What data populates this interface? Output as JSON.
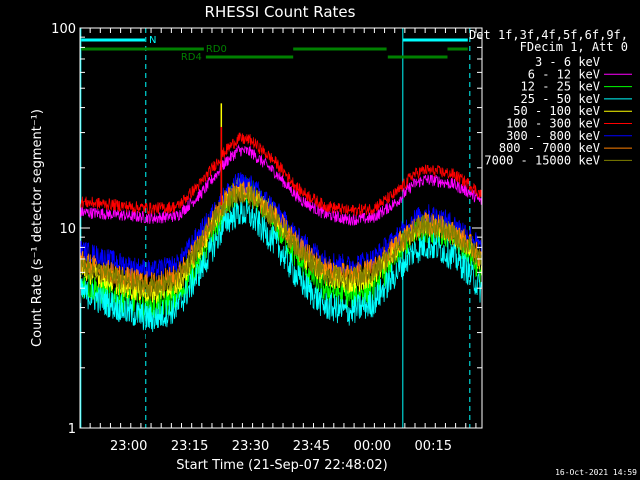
{
  "chart_data": {
    "type": "line",
    "title": "RHESSI Count Rates",
    "xlabel": "Start Time (21-Sep-07 22:48:02)",
    "ylabel": "Count Rate (s⁻¹ detector segment⁻¹)",
    "y_scale": "log",
    "ylim": [
      1,
      100
    ],
    "y_ticks": [
      "1",
      "10",
      "100"
    ],
    "x_ticks": [
      "23:00",
      "23:15",
      "23:30",
      "23:45",
      "00:00",
      "00:15"
    ],
    "x_tick_minutes": [
      12,
      27,
      42,
      57,
      72,
      87
    ],
    "xlim_minutes": [
      0,
      99
    ],
    "footer_date": "16-Oct-2021 14:59",
    "legend_header": [
      "Det 1f,3f,4f,5f,6f,9f,",
      "FDecim 1, Att 0"
    ],
    "legend_position": "right",
    "series": [
      {
        "name": "3 - 6 keV",
        "color": "#000000",
        "x": [
          0,
          6,
          12,
          18,
          24,
          30,
          36,
          39,
          42,
          48,
          54,
          60,
          66,
          72,
          78,
          82,
          85,
          88,
          92,
          96,
          99
        ],
        "y": [
          4.6,
          4.0,
          3.4,
          3.1,
          3.6,
          6.0,
          11.5,
          14.0,
          13.5,
          9.0,
          5.5,
          4.0,
          3.6,
          4.2,
          6.3,
          8.5,
          9.5,
          9.0,
          8.2,
          6.8,
          5.2
        ]
      },
      {
        "name": "6 - 12 keV",
        "color": "#ff00ff",
        "x": [
          0,
          6,
          12,
          18,
          24,
          30,
          36,
          39,
          42,
          48,
          54,
          60,
          66,
          72,
          78,
          82,
          85,
          88,
          92,
          96,
          99
        ],
        "y": [
          12.0,
          11.8,
          11.5,
          11.2,
          11.5,
          15.0,
          21.5,
          24.5,
          24.0,
          19.0,
          14.0,
          11.8,
          11.0,
          11.2,
          13.5,
          16.5,
          17.5,
          17.2,
          16.5,
          15.0,
          13.5
        ]
      },
      {
        "name": "12 - 25 keV",
        "color": "#00ff00",
        "x": [
          0,
          6,
          12,
          18,
          24,
          30,
          36,
          39,
          42,
          48,
          54,
          60,
          66,
          72,
          78,
          82,
          85,
          88,
          92,
          96,
          99
        ],
        "y": [
          5.3,
          4.8,
          4.3,
          4.0,
          4.5,
          7.2,
          13.0,
          15.5,
          15.0,
          10.5,
          6.8,
          5.0,
          4.6,
          5.0,
          7.3,
          9.2,
          10.0,
          9.8,
          8.8,
          7.5,
          6.0
        ]
      },
      {
        "name": "25 - 50 keV",
        "color": "#00ffff",
        "x": [
          0,
          6,
          12,
          18,
          24,
          30,
          36,
          39,
          42,
          48,
          54,
          60,
          66,
          72,
          78,
          82,
          85,
          88,
          92,
          96,
          99
        ],
        "y": [
          4.8,
          4.3,
          3.8,
          3.5,
          4.0,
          6.3,
          10.8,
          12.0,
          11.5,
          8.5,
          5.5,
          4.1,
          3.8,
          4.2,
          6.0,
          7.6,
          8.2,
          8.0,
          7.2,
          6.0,
          4.8
        ]
      },
      {
        "name": "50 - 100 keV",
        "color": "#ffff00",
        "x": [
          0,
          6,
          12,
          18,
          24,
          30,
          36,
          39,
          42,
          48,
          54,
          60,
          66,
          72,
          78,
          82,
          85,
          88,
          92,
          96,
          99
        ],
        "y": [
          6.2,
          5.6,
          5.0,
          4.7,
          5.2,
          8.2,
          14.0,
          16.0,
          15.5,
          11.5,
          7.6,
          5.8,
          5.3,
          5.7,
          7.9,
          9.7,
          10.4,
          10.2,
          9.3,
          8.0,
          6.6
        ]
      },
      {
        "name": "100 - 300 keV",
        "color": "#ff0000",
        "x": [
          0,
          6,
          12,
          18,
          24,
          30,
          36,
          39,
          42,
          48,
          54,
          60,
          66,
          72,
          78,
          82,
          85,
          88,
          92,
          96,
          99
        ],
        "y": [
          13.5,
          13.2,
          12.8,
          12.5,
          12.8,
          17.0,
          24.5,
          28.0,
          27.5,
          21.5,
          15.5,
          13.0,
          12.2,
          12.5,
          15.0,
          18.5,
          19.5,
          19.2,
          18.5,
          16.5,
          14.5
        ]
      },
      {
        "name": "300 - 800 keV",
        "color": "#0000ff",
        "x": [
          0,
          6,
          12,
          18,
          24,
          30,
          36,
          39,
          42,
          48,
          54,
          60,
          66,
          72,
          78,
          82,
          85,
          88,
          92,
          96,
          99
        ],
        "y": [
          7.8,
          7.1,
          6.5,
          6.1,
          6.6,
          9.8,
          15.0,
          17.0,
          16.5,
          12.5,
          8.8,
          7.0,
          6.5,
          7.0,
          9.0,
          11.0,
          11.8,
          11.5,
          10.5,
          9.3,
          7.8
        ]
      },
      {
        "name": "800 - 7000 keV",
        "color": "#ff8000",
        "x": [
          0,
          6,
          12,
          18,
          24,
          30,
          36,
          39,
          42,
          48,
          54,
          60,
          66,
          72,
          78,
          82,
          85,
          88,
          92,
          96,
          99
        ],
        "y": [
          6.8,
          6.2,
          5.6,
          5.3,
          5.8,
          8.8,
          14.0,
          15.5,
          15.0,
          11.5,
          8.0,
          6.3,
          5.8,
          6.2,
          8.2,
          9.9,
          10.6,
          10.4,
          9.5,
          8.3,
          7.0
        ]
      },
      {
        "name": "7000 - 15000 keV",
        "color": "#808000",
        "x": [
          0,
          6,
          12,
          18,
          24,
          30,
          36,
          39,
          42,
          48,
          54,
          60,
          66,
          72,
          78,
          82,
          85,
          88,
          92,
          96,
          99
        ],
        "y": [
          6.5,
          5.9,
          5.3,
          5.0,
          5.5,
          8.5,
          13.5,
          15.0,
          14.5,
          11.0,
          7.7,
          6.0,
          5.5,
          5.9,
          7.9,
          9.6,
          10.3,
          10.1,
          9.2,
          8.0,
          6.7
        ]
      }
    ],
    "spikes": [
      {
        "x": 34.8,
        "y": 42,
        "color": "#ffff00"
      },
      {
        "x": 34.8,
        "y": 32,
        "color": "#ff0000"
      }
    ],
    "vlines": [
      {
        "x": 0.2,
        "style": "solid",
        "color": "#00ffff"
      },
      {
        "x": 16.2,
        "style": "dashed",
        "color": "#00ffff"
      },
      {
        "x": 79.5,
        "style": "solid",
        "color": "#00ffff"
      },
      {
        "x": 96.0,
        "style": "dashed",
        "color": "#00ffff"
      }
    ],
    "flag_bars": [
      {
        "label": "N",
        "color": "#00ffff",
        "level": 0,
        "segments": [
          [
            0.3,
            16.0
          ],
          [
            79.5,
            95.5
          ]
        ]
      },
      {
        "label": "RD0",
        "color": "#008000",
        "level": 1,
        "segments": [
          [
            0.3,
            30.5
          ],
          [
            52.5,
            75.5
          ],
          [
            90.5,
            95.5
          ]
        ]
      },
      {
        "label": "RD4",
        "color": "#008000",
        "level": 2,
        "segments": [
          [
            31.0,
            52.5
          ],
          [
            75.8,
            90.5
          ]
        ]
      }
    ]
  }
}
